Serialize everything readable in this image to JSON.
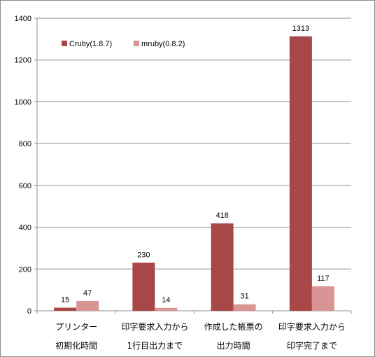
{
  "chart_data": {
    "type": "bar",
    "categories": [
      [
        "プリンター",
        "初期化時間"
      ],
      [
        "印字要求入力から",
        "1行目出力まで"
      ],
      [
        "作成した帳票の",
        "出力時間"
      ],
      [
        "印字要求入力から",
        "印字完了まで"
      ]
    ],
    "series": [
      {
        "name": "Cruby(1.8.7)",
        "values": [
          15,
          230,
          418,
          1313
        ],
        "color": "#a84747"
      },
      {
        "name": "mruby(0.8.2)",
        "values": [
          47,
          14,
          31,
          117
        ],
        "color": "#d99594"
      }
    ],
    "ylim": [
      0,
      1400
    ],
    "yticks": [
      "0",
      "200",
      "400",
      "600",
      "800",
      "1000",
      "1200",
      "1400"
    ],
    "grid": true,
    "legend_position": "top-left",
    "title": "",
    "xlabel": "",
    "ylabel": ""
  }
}
